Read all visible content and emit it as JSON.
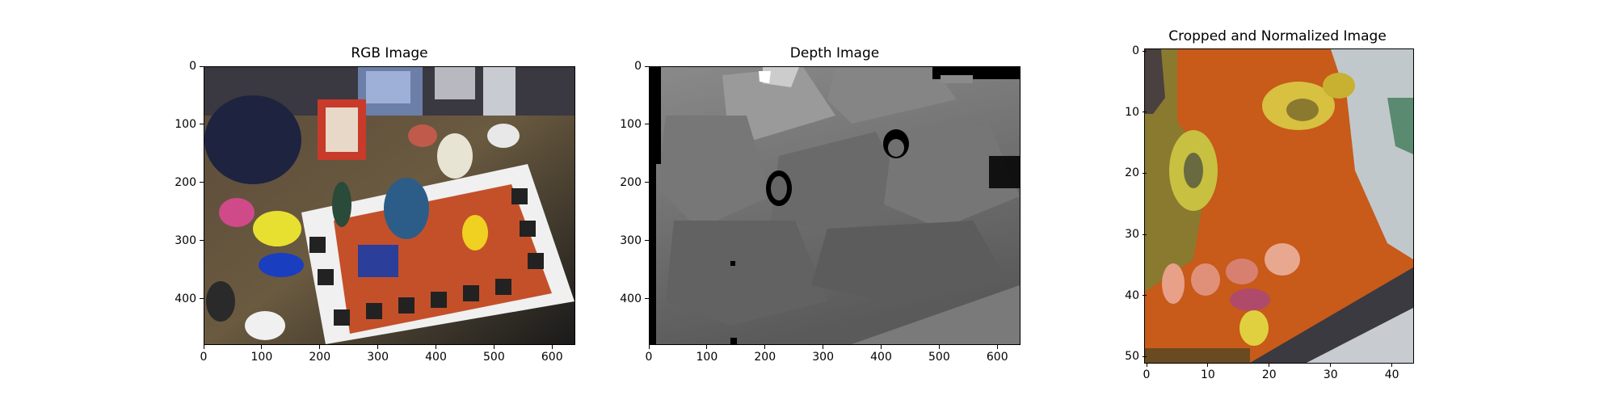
{
  "panels": {
    "rgb": {
      "title": "RGB Image",
      "x_ticks": [
        "0",
        "100",
        "200",
        "300",
        "400",
        "500",
        "600"
      ],
      "y_ticks": [
        "0",
        "100",
        "200",
        "300",
        "400"
      ],
      "x_range": [
        0,
        640
      ],
      "y_range": [
        0,
        480
      ]
    },
    "depth": {
      "title": "Depth Image",
      "x_ticks": [
        "0",
        "100",
        "200",
        "300",
        "400",
        "500",
        "600"
      ],
      "y_ticks": [
        "0",
        "100",
        "200",
        "300",
        "400"
      ],
      "x_range": [
        0,
        640
      ],
      "y_range": [
        0,
        480
      ]
    },
    "cropped": {
      "title": "Cropped and Normalized Image",
      "x_ticks": [
        "0",
        "10",
        "20",
        "30",
        "40"
      ],
      "y_ticks": [
        "0",
        "10",
        "20",
        "30",
        "40",
        "50"
      ],
      "x_range": [
        0,
        44
      ],
      "y_range": [
        0,
        51
      ]
    }
  }
}
